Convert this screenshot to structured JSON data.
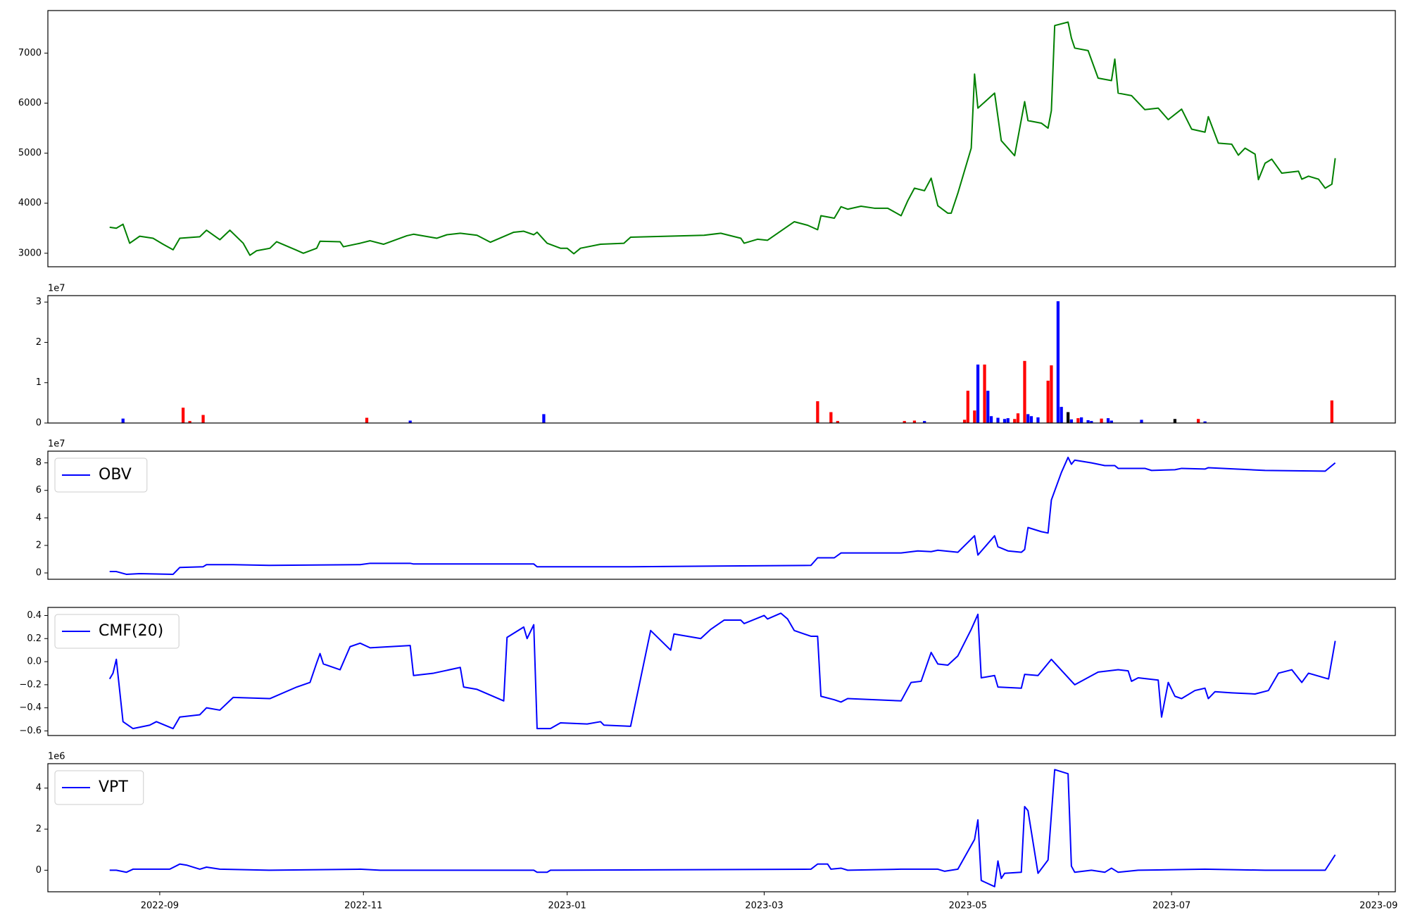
{
  "chart_data": [
    {
      "type": "line",
      "x": [
        19221,
        19223,
        19225,
        19227,
        19230,
        19234,
        19237,
        19240,
        19242,
        19248,
        19250,
        19254,
        19257,
        19261,
        19263,
        19265,
        19269,
        19271,
        19277,
        19279,
        19283,
        19284,
        19290,
        19291,
        19296,
        19299,
        19303,
        19310,
        19312,
        19319,
        19322,
        19326,
        19331,
        19335,
        19342,
        19345,
        19348,
        19349,
        19352,
        19356,
        19358,
        19360,
        19362,
        19368,
        19375,
        19377,
        19388,
        19399,
        19404,
        19410,
        19411,
        19415,
        19418,
        19426,
        19430,
        19433,
        19434,
        19438,
        19440,
        19442,
        19446,
        19450,
        19454,
        19458,
        19460,
        19462,
        19465,
        19467,
        19469,
        19472,
        19473,
        19475,
        19479,
        19480,
        19481,
        19486,
        19488,
        19492,
        19495,
        19496,
        19500,
        19502,
        19503,
        19504,
        19508,
        19509,
        19510,
        19514,
        19517,
        19521,
        19522,
        19523,
        19527,
        19531,
        19535,
        19538,
        19542,
        19545,
        19549,
        19550,
        19553,
        19557,
        19559,
        19561,
        19564,
        19565,
        19567,
        19569,
        19572,
        19577,
        19578,
        19580,
        19583,
        19585,
        19587,
        19588
      ],
      "series": [
        {
          "color": "#008000",
          "values": [
            3520,
            3500,
            3580,
            3200,
            3340,
            3300,
            3180,
            3070,
            3300,
            3330,
            3460,
            3270,
            3460,
            3200,
            2960,
            3050,
            3100,
            3230,
            3060,
            3000,
            3100,
            3240,
            3230,
            3130,
            3200,
            3250,
            3180,
            3350,
            3380,
            3300,
            3370,
            3400,
            3360,
            3220,
            3420,
            3440,
            3370,
            3420,
            3200,
            3100,
            3100,
            2990,
            3100,
            3180,
            3200,
            3320,
            3340,
            3360,
            3400,
            3300,
            3200,
            3280,
            3260,
            3630,
            3560,
            3470,
            3750,
            3700,
            3930,
            3880,
            3940,
            3900,
            3900,
            3750,
            4050,
            4300,
            4250,
            4500,
            3950,
            3800,
            3800,
            4200,
            5100,
            6580,
            5900,
            6200,
            5250,
            4950,
            6030,
            5650,
            5600,
            5500,
            5850,
            7550,
            7620,
            7300,
            7100,
            7050,
            6500,
            6450,
            6880,
            6200,
            6150,
            5870,
            5900,
            5670,
            5880,
            5480,
            5420,
            5730,
            5200,
            5180,
            4960,
            5100,
            4980,
            4470,
            4800,
            4880,
            4600,
            4640,
            4480,
            4540,
            4480,
            4300,
            4380,
            4900
          ]
        }
      ],
      "xlim": [
        19202.5,
        19606
      ],
      "ylim": [
        2730,
        7850
      ],
      "yticks": [
        3000,
        4000,
        5000,
        6000,
        7000
      ]
    },
    {
      "type": "bar",
      "x": [
        19225,
        19243,
        19245,
        19249,
        19298,
        19311,
        19351,
        19433,
        19437,
        19439,
        19459,
        19462,
        19465,
        19477,
        19478,
        19480,
        19481,
        19483,
        19484,
        19485,
        19487,
        19489,
        19490,
        19492,
        19493,
        19495,
        19496,
        19497,
        19499,
        19502,
        19503,
        19505,
        19506,
        19508,
        19509,
        19511,
        19512,
        19514,
        19515,
        19518,
        19520,
        19521,
        19530,
        19540,
        19547,
        19549,
        19587
      ],
      "values": [
        1100000,
        3800000,
        500000,
        2000000,
        1300000,
        600000,
        2200000,
        5400000,
        2700000,
        500000,
        500000,
        600000,
        500000,
        800000,
        8000000,
        3100000,
        14500000,
        14500000,
        8000000,
        1700000,
        1300000,
        1000000,
        1200000,
        1000000,
        2400000,
        15400000,
        2200000,
        1700000,
        1400000,
        10500000,
        14300000,
        30200000,
        4000000,
        2700000,
        900000,
        1200000,
        1400000,
        700000,
        500000,
        1100000,
        1200000,
        600000,
        800000,
        1000000,
        1000000,
        400000,
        5600000
      ],
      "colors": [
        "#0000ff",
        "#ff0000",
        "#ff0000",
        "#ff0000",
        "#ff0000",
        "#0000ff",
        "#0000ff",
        "#ff0000",
        "#ff0000",
        "#ff0000",
        "#ff0000",
        "#ff0000",
        "#0000ff",
        "#ff0000",
        "#ff0000",
        "#ff0000",
        "#0000ff",
        "#ff0000",
        "#0000ff",
        "#0000ff",
        "#0000ff",
        "#0000ff",
        "#0000ff",
        "#ff0000",
        "#ff0000",
        "#ff0000",
        "#0000ff",
        "#0000ff",
        "#0000ff",
        "#ff0000",
        "#ff0000",
        "#0000ff",
        "#0000ff",
        "#000000",
        "#0000ff",
        "#ff0000",
        "#0000ff",
        "#0000ff",
        "#0000ff",
        "#ff0000",
        "#0000ff",
        "#0000ff",
        "#0000ff",
        "#000000",
        "#ff0000",
        "#0000ff",
        "#ff0000"
      ],
      "xlim": [
        19202.5,
        19606
      ],
      "ylim": [
        0,
        31600000
      ],
      "yticks": [
        0,
        {
          "value": 10000000,
          "label": "1"
        },
        {
          "value": 20000000,
          "label": "2"
        },
        {
          "value": 30000000,
          "label": "3"
        }
      ],
      "offset_text": "1e7"
    },
    {
      "type": "line",
      "x": [
        19221,
        19223,
        19226,
        19230,
        19240,
        19242,
        19249,
        19250,
        19258,
        19269,
        19296,
        19299,
        19311,
        19312,
        19348,
        19349,
        19377,
        19431,
        19433,
        19438,
        19440,
        19458,
        19463,
        19467,
        19469,
        19475,
        19480,
        19481,
        19486,
        19487,
        19490,
        19494,
        19495,
        19496,
        19500,
        19502,
        19503,
        19506,
        19508,
        19509,
        19510,
        19515,
        19519,
        19522,
        19523,
        19531,
        19533,
        19540,
        19542,
        19549,
        19550,
        19567,
        19585,
        19588
      ],
      "series": [
        {
          "name": "OBV",
          "color": "#0000ff",
          "values": [
            1000000,
            1000000,
            -1000000,
            -500000,
            -1000000,
            4000000,
            4500000,
            6000000,
            6000000,
            5500000,
            6000000,
            7000000,
            7000000,
            6500000,
            6500000,
            4500000,
            4500000,
            5500000,
            11000000,
            11000000,
            14500000,
            14500000,
            16000000,
            15500000,
            16500000,
            15000000,
            27000000,
            13000000,
            27000000,
            19000000,
            16000000,
            15000000,
            17000000,
            33000000,
            30000000,
            29000000,
            53000000,
            73000000,
            84000000,
            79000000,
            82000000,
            80000000,
            78000000,
            78000000,
            76000000,
            76000000,
            74500000,
            75000000,
            76000000,
            75500000,
            76500000,
            74500000,
            74000000,
            80000000
          ]
        }
      ],
      "xlim": [
        19202.5,
        19606
      ],
      "ylim": [
        -4600000,
        88500000
      ],
      "yticks": [
        0,
        {
          "value": 20000000,
          "label": "2"
        },
        {
          "value": 40000000,
          "label": "4"
        },
        {
          "value": 60000000,
          "label": "6"
        },
        {
          "value": 80000000,
          "label": "8"
        }
      ],
      "offset_text": "1e7",
      "legend": "upper left"
    },
    {
      "type": "line",
      "x": [
        19221,
        19222,
        19223,
        19225,
        19228,
        19233,
        19235,
        19240,
        19242,
        19248,
        19250,
        19254,
        19258,
        19269,
        19277,
        19281,
        19283,
        19284,
        19285,
        19290,
        19293,
        19296,
        19299,
        19311,
        19312,
        19318,
        19326,
        19327,
        19331,
        19339,
        19340,
        19345,
        19346,
        19348,
        19349,
        19353,
        19356,
        19364,
        19368,
        19369,
        19377,
        19383,
        19389,
        19390,
        19398,
        19401,
        19405,
        19410,
        19411,
        19417,
        19418,
        19422,
        19424,
        19426,
        19431,
        19433,
        19434,
        19438,
        19440,
        19442,
        19458,
        19461,
        19464,
        19467,
        19469,
        19472,
        19475,
        19479,
        19481,
        19482,
        19486,
        19487,
        19494,
        19495,
        19499,
        19503,
        19510,
        19517,
        19523,
        19526,
        19527,
        19529,
        19535,
        19536,
        19538,
        19540,
        19542,
        19546,
        19549,
        19550,
        19552,
        19557,
        19564,
        19568,
        19571,
        19575,
        19578,
        19580,
        19586,
        19588
      ],
      "series": [
        {
          "name": "CMF(20)",
          "color": "#0000ff",
          "values": [
            -0.15,
            -0.1,
            0.02,
            -0.52,
            -0.58,
            -0.55,
            -0.52,
            -0.58,
            -0.48,
            -0.46,
            -0.4,
            -0.42,
            -0.31,
            -0.32,
            -0.22,
            -0.18,
            -0.01,
            0.07,
            -0.02,
            -0.07,
            0.13,
            0.16,
            0.12,
            0.14,
            -0.12,
            -0.1,
            -0.05,
            -0.22,
            -0.24,
            -0.34,
            0.21,
            0.3,
            0.2,
            0.32,
            -0.58,
            -0.58,
            -0.53,
            -0.54,
            -0.52,
            -0.55,
            -0.56,
            0.27,
            0.1,
            0.24,
            0.2,
            0.28,
            0.36,
            0.36,
            0.33,
            0.4,
            0.37,
            0.42,
            0.37,
            0.27,
            0.22,
            0.22,
            -0.3,
            -0.33,
            -0.35,
            -0.32,
            -0.34,
            -0.18,
            -0.17,
            0.08,
            -0.02,
            -0.03,
            0.05,
            0.28,
            0.41,
            -0.14,
            -0.12,
            -0.22,
            -0.23,
            -0.11,
            -0.12,
            0.02,
            -0.2,
            -0.09,
            -0.07,
            -0.08,
            -0.17,
            -0.14,
            -0.16,
            -0.48,
            -0.18,
            -0.3,
            -0.32,
            -0.25,
            -0.23,
            -0.32,
            -0.26,
            -0.27,
            -0.28,
            -0.25,
            -0.1,
            -0.07,
            -0.18,
            -0.1,
            -0.15,
            0.18
          ]
        }
      ],
      "xlim": [
        19202.5,
        19606
      ],
      "ylim": [
        -0.64,
        0.47
      ],
      "yticks": [
        {
          "value": -0.6,
          "label": "−0.6"
        },
        {
          "value": -0.4,
          "label": "−0.4"
        },
        {
          "value": -0.2,
          "label": "−0.2"
        },
        {
          "value": 0,
          "label": "0.0"
        },
        0.2,
        0.4
      ],
      "legend": "upper left"
    },
    {
      "type": "line",
      "x": [
        19221,
        19223,
        19226,
        19228,
        19239,
        19242,
        19244,
        19248,
        19250,
        19254,
        19269,
        19296,
        19302,
        19348,
        19349,
        19352,
        19353,
        19431,
        19433,
        19436,
        19437,
        19440,
        19442,
        19458,
        19469,
        19471,
        19475,
        19480,
        19481,
        19482,
        19486,
        19487,
        19488,
        19489,
        19494,
        19495,
        19496,
        19499,
        19502,
        19504,
        19508,
        19509,
        19510,
        19515,
        19519,
        19521,
        19523,
        19529,
        19549,
        19567,
        19585,
        19588
      ],
      "series": [
        {
          "name": "VPT",
          "color": "#0000ff",
          "values": [
            0,
            0,
            -100000,
            50000,
            50000,
            300000,
            250000,
            50000,
            150000,
            50000,
            0,
            50000,
            0,
            0,
            -100000,
            -100000,
            0,
            50000,
            300000,
            300000,
            50000,
            100000,
            0,
            50000,
            50000,
            -50000,
            50000,
            1500000,
            2450000,
            -500000,
            -800000,
            450000,
            -400000,
            -150000,
            -100000,
            3100000,
            2900000,
            -150000,
            500000,
            4900000,
            4700000,
            200000,
            -100000,
            0,
            -100000,
            100000,
            -100000,
            0,
            50000,
            0,
            0,
            750000
          ]
        }
      ],
      "xlim": [
        19202.5,
        19606
      ],
      "ylim": [
        -1050000,
        5190000
      ],
      "yticks": [
        0,
        {
          "value": 2000000,
          "label": "2"
        },
        {
          "value": 4000000,
          "label": "4"
        }
      ],
      "offset_text": "1e6",
      "legend": "upper left",
      "xticks": [
        {
          "value": 19236,
          "label": "2022-09"
        },
        {
          "value": 19297,
          "label": "2022-11"
        },
        {
          "value": 19358,
          "label": "2023-01"
        },
        {
          "value": 19417,
          "label": "2023-03"
        },
        {
          "value": 19478,
          "label": "2023-05"
        },
        {
          "value": 19539,
          "label": "2023-07"
        },
        {
          "value": 19601,
          "label": "2023-09"
        }
      ]
    }
  ]
}
